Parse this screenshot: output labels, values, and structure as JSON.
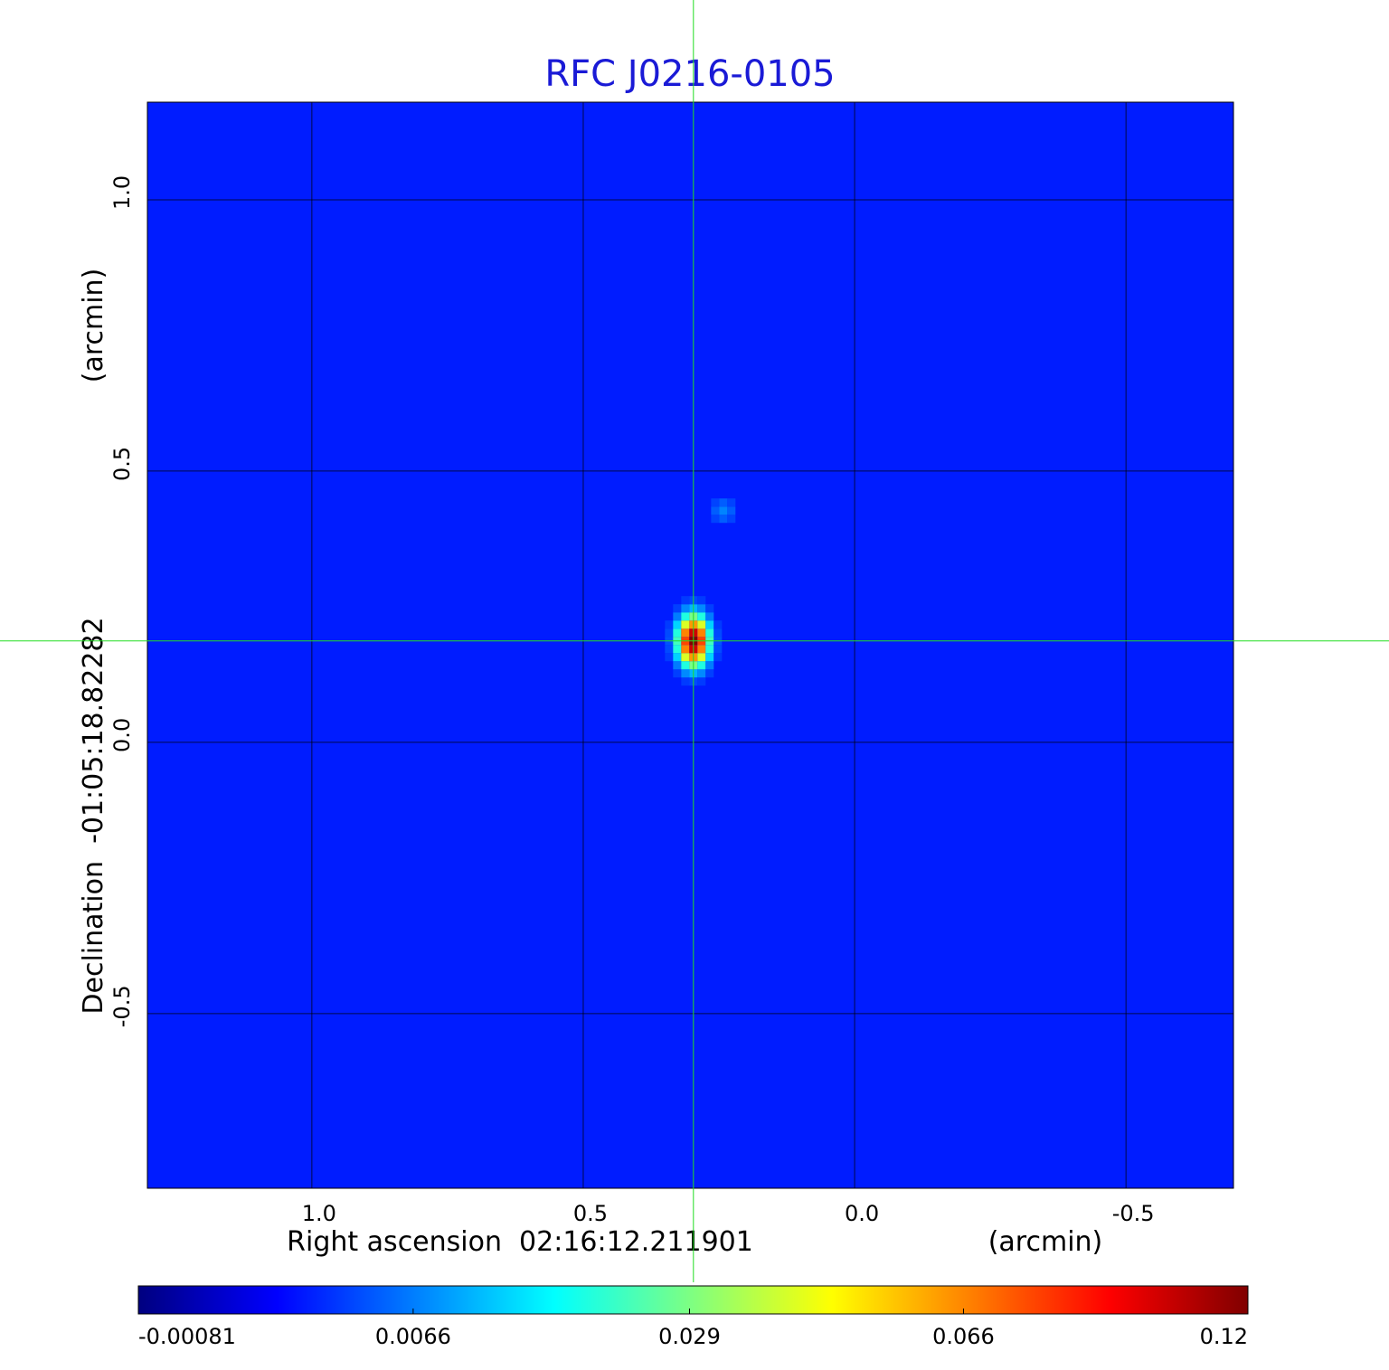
{
  "chart_data": {
    "type": "image",
    "title": "RFC J0216-0105",
    "xlabel": "Right ascension  02:16:12.211901",
    "xunit": "(arcmin)",
    "ylabel": "Declination  -01:05:18.82282",
    "yunit": "(arcmin)",
    "xlim": [
      1.303,
      -0.698
    ],
    "ylim": [
      -0.822,
      1.18
    ],
    "xticks": [
      {
        "value": 1,
        "label": "1.0"
      },
      0.5,
      {
        "value": 0,
        "label": "0.0"
      },
      -0.5
    ],
    "yticks": [
      {
        "value": 1,
        "label": "1.0"
      },
      0.5,
      {
        "value": 0,
        "label": "0.0"
      },
      -0.5
    ],
    "grid": true,
    "crosshair": [
      0.297,
      0.187
    ],
    "colormap": "jet",
    "stretch": "sqrt",
    "clim": [
      -0.00081,
      0.12
    ],
    "cticks": [
      -0.00081,
      0.0066,
      0.029,
      0.066,
      0.12
    ],
    "background": 0.002,
    "sources": [
      {
        "x": 0.297,
        "y": 0.187,
        "peak": 0.12,
        "sigma_x": 0.016,
        "sigma_y": 0.026
      },
      {
        "x": 0.242,
        "y": 0.427,
        "peak": 0.007,
        "sigma_x": 0.014,
        "sigma_y": 0.014
      }
    ]
  }
}
